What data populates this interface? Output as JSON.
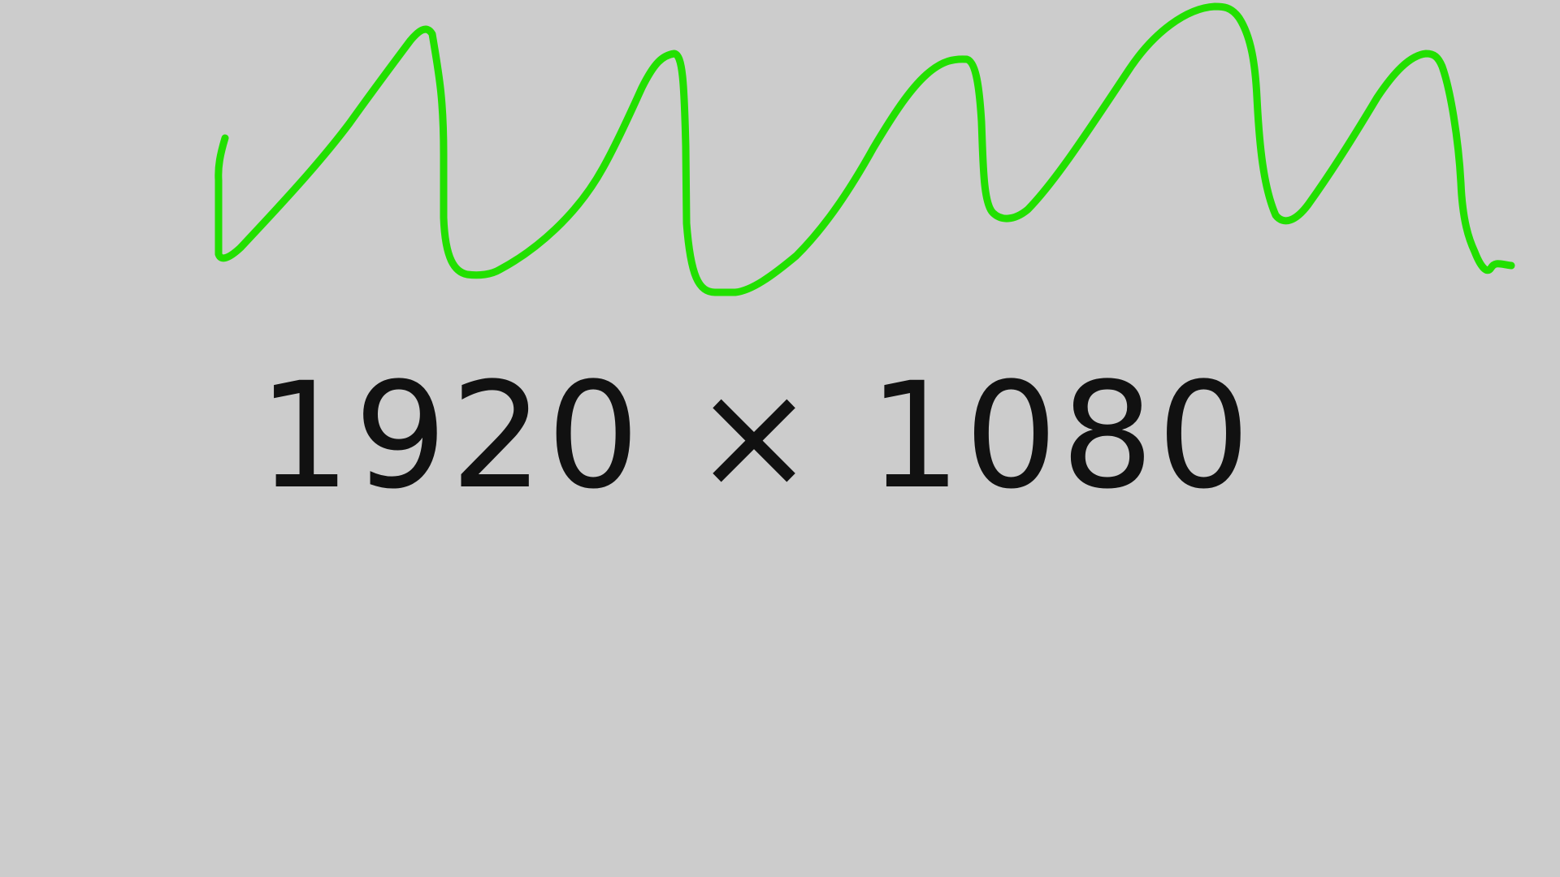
{
  "colors": {
    "background": "#cccccc",
    "stroke": "#22e000",
    "text": "#111111"
  },
  "placeholder": {
    "dimension_text": "1920 × 1080"
  }
}
